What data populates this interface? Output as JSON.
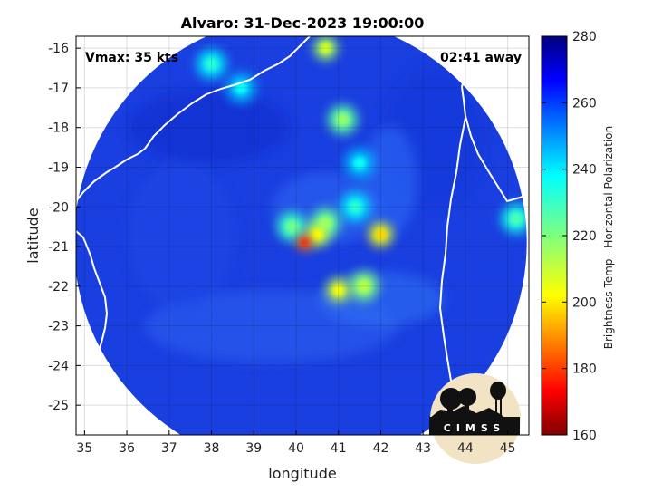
{
  "title": "Alvaro: 31-Dec-2023 19:00:00",
  "vmax_label": "Vmax: 35 kts",
  "time_away_label": "02:41 away",
  "logo_text": "CIMSS",
  "xaxis": {
    "label": "longitude",
    "range": [
      34.8,
      45.5
    ],
    "ticks": [
      35,
      36,
      37,
      38,
      39,
      40,
      41,
      42,
      43,
      44,
      45
    ],
    "tick_labels": [
      "35",
      "36",
      "37",
      "38",
      "39",
      "40",
      "41",
      "42",
      "43",
      "44",
      "45"
    ]
  },
  "yaxis": {
    "label": "latitude",
    "range": [
      -25.75,
      -15.7
    ],
    "ticks": [
      -16,
      -17,
      -18,
      -19,
      -20,
      -21,
      -22,
      -23,
      -24,
      -25
    ],
    "tick_labels": [
      "-16",
      "-17",
      "-18",
      "-19",
      "-20",
      "-21",
      "-22",
      "-23",
      "-24",
      "-25"
    ]
  },
  "colorbar": {
    "label": "Brightness Temp - Horizontal Polarization",
    "range": [
      160,
      280
    ],
    "ticks": [
      280,
      260,
      240,
      220,
      200,
      180,
      160
    ],
    "tick_labels": [
      "280",
      "260",
      "240",
      "220",
      "200",
      "180",
      "160"
    ],
    "colormap": "jet"
  },
  "grid": true,
  "colors": {
    "swath_background": "#1a3fe0",
    "coastline": "#ffffff"
  },
  "chart_data": {
    "type": "heatmap",
    "swath_center": [
      40.1,
      -20.9
    ],
    "features": [
      {
        "lon": 40.2,
        "lat": -20.9,
        "tb": 185
      },
      {
        "lon": 40.5,
        "lat": -20.7,
        "tb": 210
      },
      {
        "lon": 39.9,
        "lat": -20.5,
        "tb": 230
      },
      {
        "lon": 40.7,
        "lat": -20.4,
        "tb": 225
      },
      {
        "lon": 42.0,
        "lat": -20.7,
        "tb": 205
      },
      {
        "lon": 41.0,
        "lat": -22.1,
        "tb": 210
      },
      {
        "lon": 41.6,
        "lat": -22.0,
        "tb": 220
      },
      {
        "lon": 40.7,
        "lat": -16.0,
        "tb": 215
      },
      {
        "lon": 41.1,
        "lat": -17.8,
        "tb": 225
      },
      {
        "lon": 38.0,
        "lat": -16.4,
        "tb": 240
      },
      {
        "lon": 38.7,
        "lat": -17.0,
        "tb": 245
      },
      {
        "lon": 41.5,
        "lat": -18.9,
        "tb": 245
      },
      {
        "lon": 41.4,
        "lat": -20.0,
        "tb": 240
      },
      {
        "lon": 45.2,
        "lat": -20.3,
        "tb": 235
      }
    ]
  }
}
